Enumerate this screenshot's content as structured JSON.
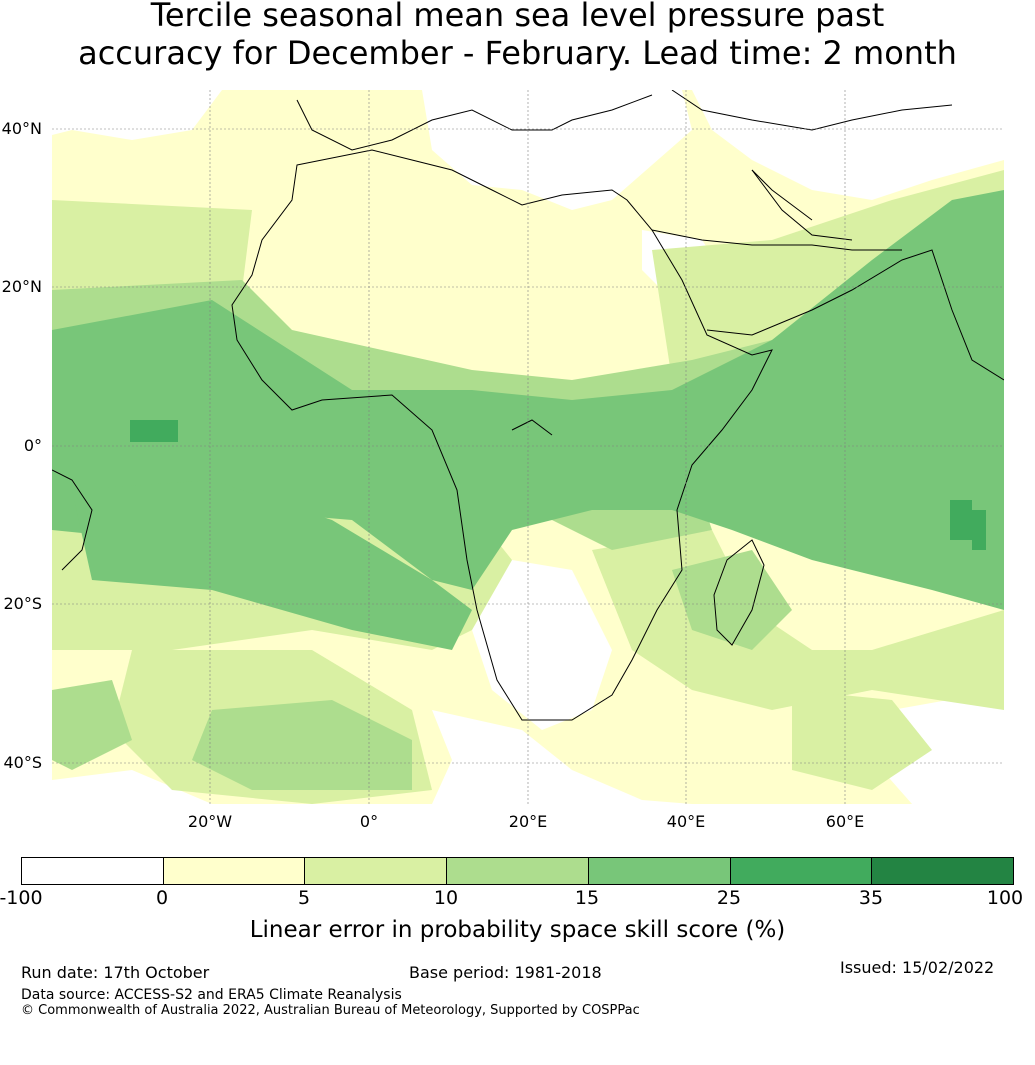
{
  "title": {
    "line1": "Tercile seasonal mean sea level pressure past",
    "line2": "accuracy for December - February. Lead time: 2 month"
  },
  "axes": {
    "lat_labels": [
      "40°N",
      "20°N",
      "0°",
      "20°S",
      "40°S"
    ],
    "lon_labels": [
      "20°W",
      "0°",
      "20°E",
      "40°E",
      "60°E"
    ]
  },
  "colorbar": {
    "ticks": [
      "-100",
      "0",
      "5",
      "10",
      "15",
      "25",
      "35",
      "100"
    ],
    "label": "Linear error in probability space skill score (%)",
    "colors": [
      "#ffffff",
      "#ffffcc",
      "#d9f0a3",
      "#addd8e",
      "#78c679",
      "#41ab5d",
      "#238443"
    ]
  },
  "footer": {
    "run_date": "Run date: 17th October",
    "base_period": "Base period: 1981-2018",
    "issued": "Issued: 15/02/2022",
    "data_source": "Data source: ACCESS-S2 and ERA5 Climate Reanalysis",
    "copyright": "© Commonwealth of Australia 2022, Australian Bureau of Meteorology, Supported by COSPPac"
  }
}
